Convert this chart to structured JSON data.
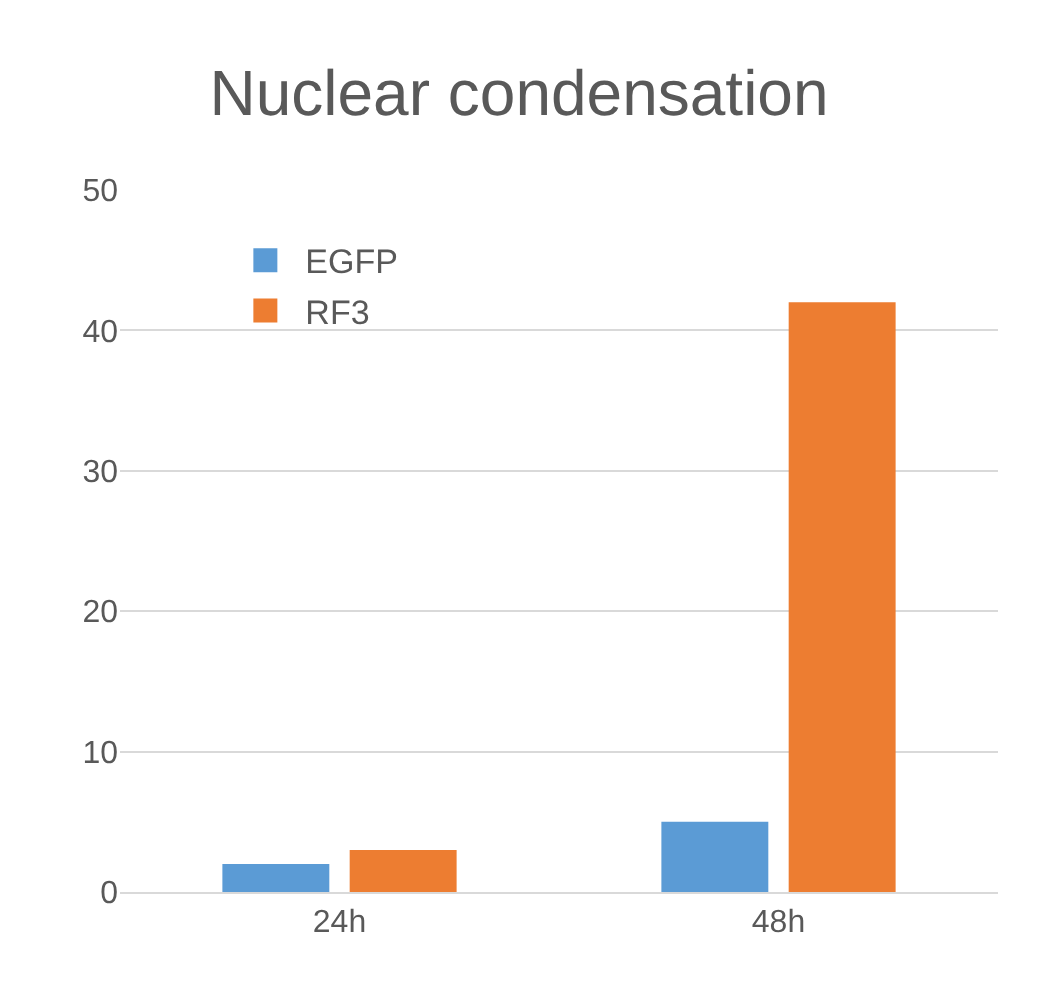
{
  "chart_data": {
    "type": "bar",
    "title": "Nuclear condensation",
    "categories": [
      "24h",
      "48h"
    ],
    "series": [
      {
        "name": "EGFP",
        "color": "#5b9bd5",
        "values": [
          2,
          5
        ]
      },
      {
        "name": "RF3",
        "color": "#ed7d31",
        "values": [
          3,
          42
        ]
      }
    ],
    "ylim": [
      0,
      50
    ],
    "yticks": [
      0,
      10,
      20,
      30,
      40,
      50
    ],
    "grid": "y",
    "legend": "top left"
  }
}
